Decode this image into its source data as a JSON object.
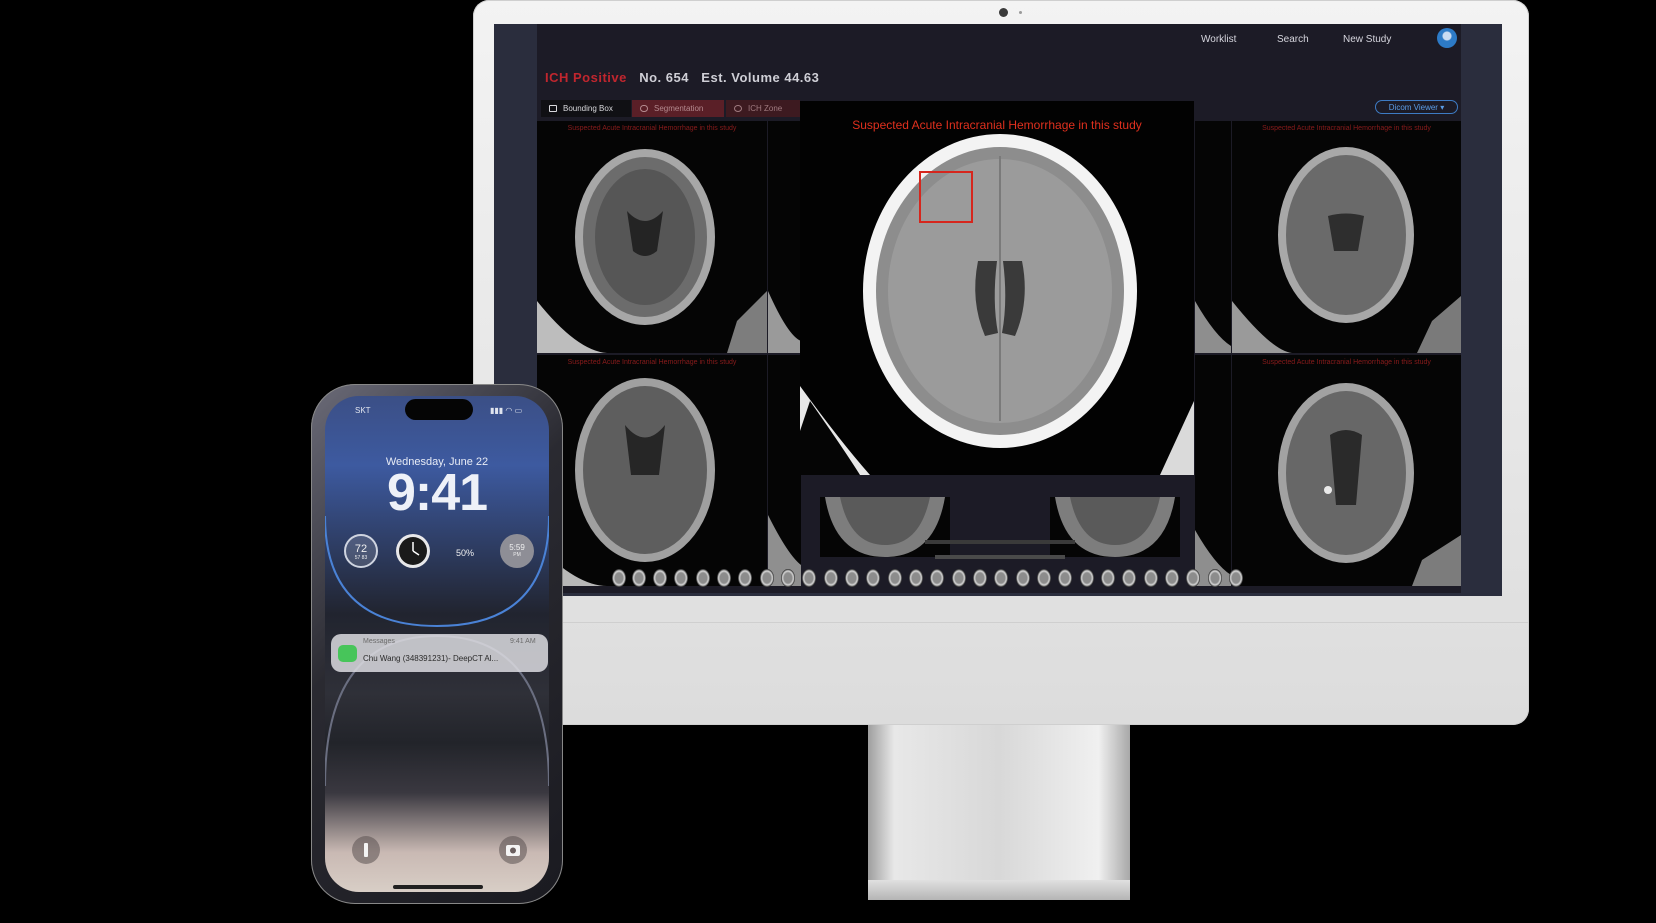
{
  "nav": {
    "worklist": "Worklist",
    "search": "Search",
    "new_study": "New Study"
  },
  "study": {
    "status": "ICH Positive",
    "number": "No. 654",
    "volume": "Est. Volume 44.63"
  },
  "tabs": [
    {
      "label": "Bounding Box",
      "active": true
    },
    {
      "label": "Segmentation",
      "active": false
    },
    {
      "label": "ICH Zone",
      "active": false
    }
  ],
  "dicom_button": "Dicom Viewer",
  "panel_label": "Suspected Acute Intracranial Hemorrhage in this study",
  "popup": {
    "title": "Suspected Acute Intracranial Hemorrhage in this study"
  },
  "phone": {
    "status_left": "SKT",
    "date": "Wednesday, June 22",
    "time": "9:41",
    "widgets": {
      "temp": "72",
      "temp_range": "57  83",
      "battery": "50%",
      "sunset": "5:59",
      "sunset_unit": "PM"
    },
    "notification": {
      "app": "Messages",
      "time": "9:41 AM",
      "message": "Chu Wang (348391231)- DeepCT Al..."
    }
  },
  "colors": {
    "accent_red": "#c0262e",
    "bbox_red": "#d6261d",
    "dicom_blue": "#3d7bc4"
  }
}
